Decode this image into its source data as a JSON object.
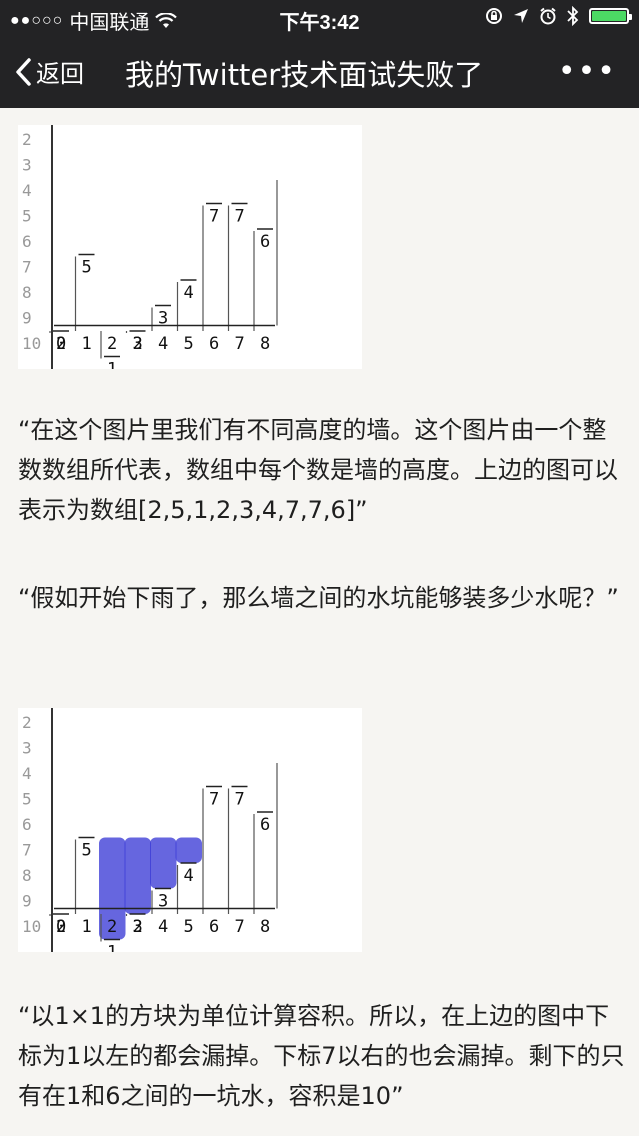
{
  "status": {
    "carrier": "中国联通",
    "time": "下午3:42"
  },
  "nav": {
    "back_label": "返回",
    "title": "我的Twitter技术面试失败了"
  },
  "figure1": {
    "y_ticks": [
      "2",
      "3",
      "4",
      "5",
      "6",
      "7",
      "8",
      "9",
      "10"
    ],
    "x_ticks": [
      "0",
      "1",
      "2",
      "3",
      "4",
      "5",
      "6",
      "7",
      "8"
    ],
    "heights": [
      2,
      5,
      1,
      2,
      3,
      4,
      7,
      7,
      6
    ],
    "value_labels": [
      "2",
      "5",
      "1",
      "2",
      "3",
      "4",
      "7",
      "7",
      "6"
    ]
  },
  "figure2": {
    "y_ticks": [
      "2",
      "3",
      "4",
      "5",
      "6",
      "7",
      "8",
      "9",
      "10"
    ],
    "x_ticks": [
      "0",
      "1",
      "2",
      "3",
      "4",
      "5",
      "6",
      "7",
      "8"
    ],
    "heights": [
      2,
      5,
      1,
      2,
      3,
      4,
      7,
      7,
      6
    ],
    "value_labels": [
      "2",
      "5",
      "1",
      "2",
      "3",
      "4",
      "7",
      "7",
      "6"
    ],
    "water_color": "#3b3bd6"
  },
  "paragraphs": [
    "“在这个图片里我们有不同高度的墙。这个图片由一个整数数组所代表，数组中每个数是墙的高度。上边的图可以表示为数组[2,5,1,2,3,4,7,7,6]”",
    "“假如开始下雨了，那么墙之间的水坑能够装多少水呢？”",
    "“以1×1的方块为单位计算容积。所以，在上边的图中下标为1以左的都会漏掉。下标7以右的也会漏掉。剩下的只有在1和6之间的一坑水，容积是10”"
  ]
}
